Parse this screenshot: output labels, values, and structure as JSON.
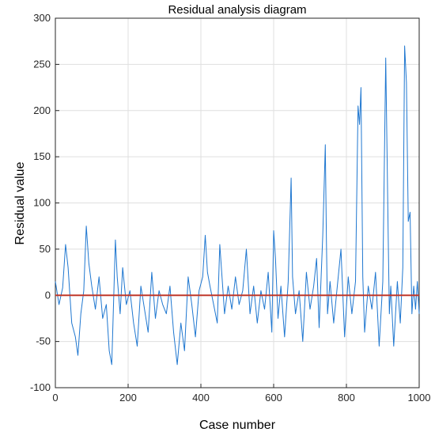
{
  "chart_data": {
    "type": "line",
    "title": "Residual analysis diagram",
    "xlabel": "Case number",
    "ylabel": "Residual value",
    "xlim": [
      0,
      1000
    ],
    "ylim": [
      -100,
      300
    ],
    "xticks": [
      0,
      200,
      400,
      600,
      800,
      1000
    ],
    "yticks": [
      -100,
      -50,
      0,
      50,
      100,
      150,
      200,
      250,
      300
    ],
    "xtick_labels": [
      "0",
      "200",
      "400",
      "600",
      "800",
      "1000"
    ],
    "ytick_labels": [
      "-100",
      "-50",
      "0",
      "50",
      "100",
      "150",
      "200",
      "250",
      "300"
    ],
    "grid": true,
    "series": [
      {
        "color": "#1f77d0",
        "x": [
          0,
          10,
          20,
          28,
          35,
          45,
          55,
          62,
          70,
          78,
          85,
          92,
          100,
          110,
          120,
          130,
          140,
          148,
          155,
          165,
          170,
          178,
          185,
          195,
          205,
          215,
          225,
          235,
          245,
          255,
          265,
          275,
          285,
          295,
          305,
          315,
          325,
          335,
          345,
          355,
          365,
          375,
          385,
          395,
          405,
          412,
          418,
          425,
          435,
          445,
          452,
          458,
          465,
          475,
          485,
          495,
          505,
          515,
          525,
          535,
          545,
          555,
          565,
          575,
          585,
          595,
          600,
          605,
          612,
          620,
          630,
          640,
          648,
          652,
          660,
          670,
          680,
          690,
          700,
          710,
          718,
          725,
          735,
          742,
          745,
          748,
          755,
          765,
          775,
          785,
          795,
          805,
          815,
          825,
          832,
          836,
          840,
          845,
          850,
          860,
          870,
          880,
          890,
          900,
          908,
          915,
          918,
          922,
          930,
          940,
          948,
          955,
          960,
          965,
          970,
          975,
          980,
          985,
          990,
          995,
          1000
        ],
        "values": [
          15,
          -10,
          8,
          55,
          30,
          -30,
          -45,
          -65,
          -20,
          5,
          75,
          35,
          10,
          -15,
          20,
          -25,
          -10,
          -60,
          -75,
          60,
          20,
          -20,
          30,
          -10,
          5,
          -30,
          -55,
          10,
          -15,
          -40,
          25,
          -25,
          5,
          -10,
          -20,
          10,
          -40,
          -75,
          -30,
          -60,
          20,
          -10,
          -45,
          5,
          20,
          65,
          25,
          10,
          -10,
          -30,
          55,
          20,
          -20,
          10,
          -15,
          20,
          -10,
          5,
          50,
          -20,
          10,
          -30,
          5,
          -15,
          25,
          -40,
          70,
          40,
          -25,
          10,
          -45,
          15,
          127,
          20,
          -20,
          5,
          -50,
          25,
          -15,
          10,
          40,
          -35,
          65,
          163,
          60,
          -20,
          15,
          -30,
          10,
          50,
          -45,
          20,
          -20,
          15,
          205,
          185,
          225,
          20,
          -40,
          10,
          -15,
          25,
          -55,
          15,
          257,
          60,
          -20,
          10,
          -55,
          15,
          -30,
          30,
          270,
          230,
          80,
          90,
          -20,
          10,
          -15,
          15,
          -20
        ]
      },
      {
        "color": "#c0392b",
        "x": [
          0,
          1000
        ],
        "values": [
          0,
          0
        ]
      }
    ]
  }
}
